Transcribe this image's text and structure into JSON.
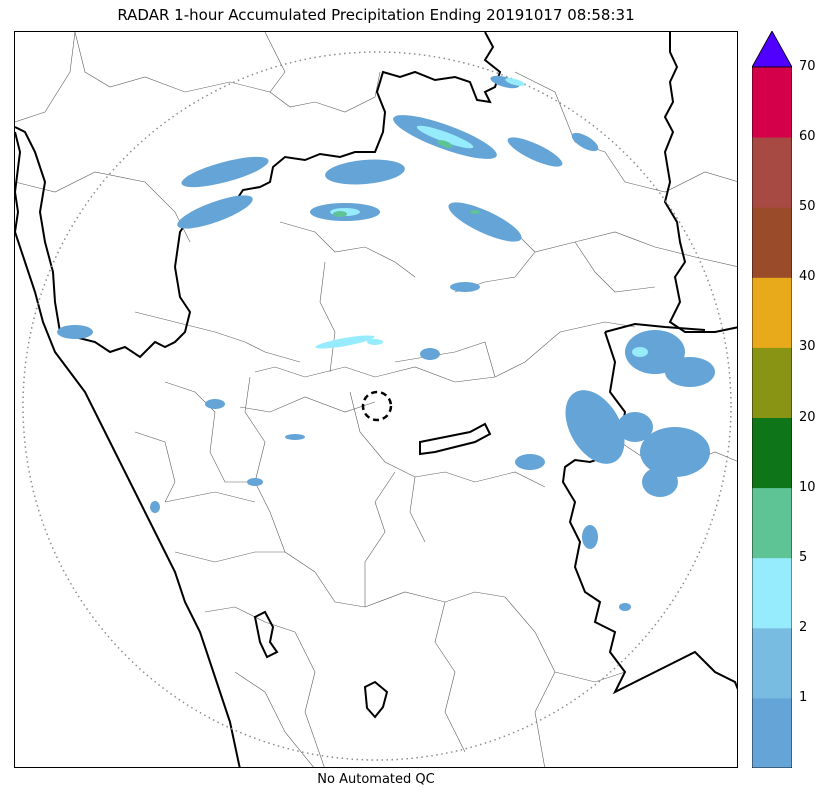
{
  "title": "RADAR 1-hour Accumulated Precipitation Ending 20191017 08:58:31",
  "qc_label": "No Automated QC",
  "colorbar": {
    "levels": [
      "1",
      "2",
      "5",
      "10",
      "20",
      "30",
      "40",
      "50",
      "60",
      "70"
    ],
    "colors": [
      "#64a4d6",
      "#78bce2",
      "#96ecfc",
      "#5ec496",
      "#0e7618",
      "#8a9414",
      "#e8aa1a",
      "#9a4c2a",
      "#a74a44",
      "#d4004a"
    ],
    "extend_color": "#5000ff"
  },
  "map": {
    "coast_color": "#000000",
    "border_color": "#000000",
    "district_color": "#606060",
    "range_ring_color": "#8c8c8c",
    "radar_marker_color": "#000000"
  }
}
